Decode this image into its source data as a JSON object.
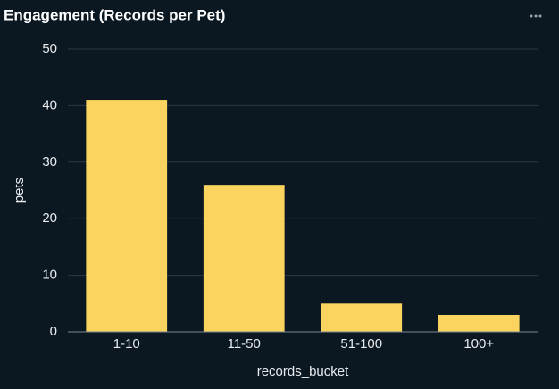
{
  "chart_data": {
    "type": "bar",
    "title": "Engagement (Records per Pet)",
    "x_label": "records_bucket",
    "y_label": "pets",
    "categories": [
      "1-10",
      "11-50",
      "51-100",
      "100+"
    ],
    "values": [
      41,
      26,
      5,
      3
    ],
    "color": "#fad45f",
    "ylim": [
      0,
      50
    ],
    "yticks": [
      0,
      10,
      20,
      30,
      40,
      50
    ],
    "grid": true
  }
}
